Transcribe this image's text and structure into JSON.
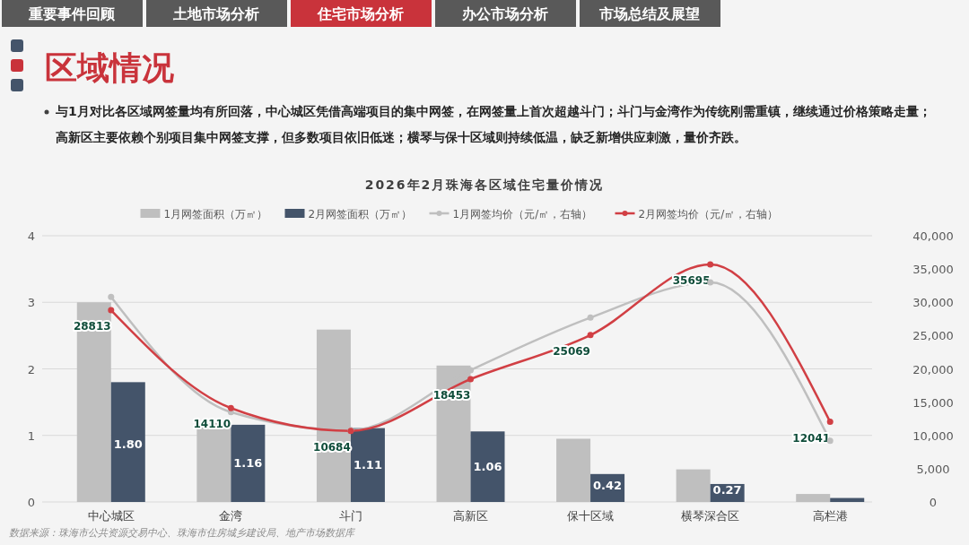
{
  "chart_data": {
    "type": "bar",
    "title": "2026年2月珠海各区域住宅量价情况",
    "subtitle": "与1月对比各区域网签量均有所回落，中心城区凭借高端项目的集中网签，在网签量上首次超越斗门；斗门与金湾作为传统刚需重镇，继续通过价格策略走量；高新区主要依赖个别项目集中网签支撑，但多数项目依旧低迷；横琴与保十区域则持续低温，缺乏新增供应刺激，量价齐跌。",
    "annotations": [
      "重要事件回顾",
      "土地市场分析",
      "住宅市场分析",
      "办公市场分析",
      "市场总结及展望",
      "区域情况",
      "数据来源：珠海市公共资源交易中心、珠海市住房城乡建设局、地产市场数据库"
    ],
    "categories": [
      "中心城区",
      "金湾",
      "斗门",
      "高新区",
      "保十区域",
      "横琴深合区",
      "高栏港"
    ],
    "series": [
      {
        "name": "1月网签面积（万㎡）",
        "color": "#bfbfbf",
        "values": [
          3.0,
          1.19,
          2.59,
          2.05,
          0.95,
          0.49,
          0.12
        ]
      },
      {
        "name": "2月网签面积（万㎡）",
        "color": "#44546a",
        "values": [
          1.8,
          1.16,
          1.11,
          1.06,
          0.42,
          0.27,
          0.06
        ],
        "value_labels": [
          "1.80",
          "1.16",
          "1.11",
          "1.06",
          "0.42",
          "0.27",
          null
        ]
      },
      {
        "name": "1月网签均价（元/㎡，右轴）",
        "type": "line",
        "axis": "y2",
        "color": "#bfbfbf",
        "values": [
          30800,
          13500,
          10800,
          19800,
          27700,
          33000,
          9200
        ]
      },
      {
        "name": "2月网签均价（元/㎡，右轴）",
        "type": "line",
        "axis": "y2",
        "color": "#d13f44",
        "values": [
          28813,
          14110,
          10684,
          18453,
          25069,
          35695,
          12041
        ],
        "value_labels": [
          "28813",
          "14110",
          "10684",
          "18453",
          "25069",
          "35695",
          "12041"
        ]
      }
    ],
    "ylim": [
      0,
      4
    ],
    "yticks": [
      0,
      1,
      2,
      3,
      4
    ],
    "y2lim": [
      0,
      40000
    ],
    "y2ticks": [
      {
        "value": 0,
        "label": "0"
      },
      {
        "value": 5000,
        "label": "5,000"
      },
      {
        "value": 10000,
        "label": "10,000"
      },
      {
        "value": 15000,
        "label": "15,000"
      },
      {
        "value": 20000,
        "label": "20,000"
      },
      {
        "value": 25000,
        "label": "25,000"
      },
      {
        "value": 30000,
        "label": "30,000"
      },
      {
        "value": 35000,
        "label": "35,000"
      },
      {
        "value": 40000,
        "label": "40,000"
      }
    ],
    "grid": "y",
    "legend": "top",
    "marker": "circle"
  }
}
